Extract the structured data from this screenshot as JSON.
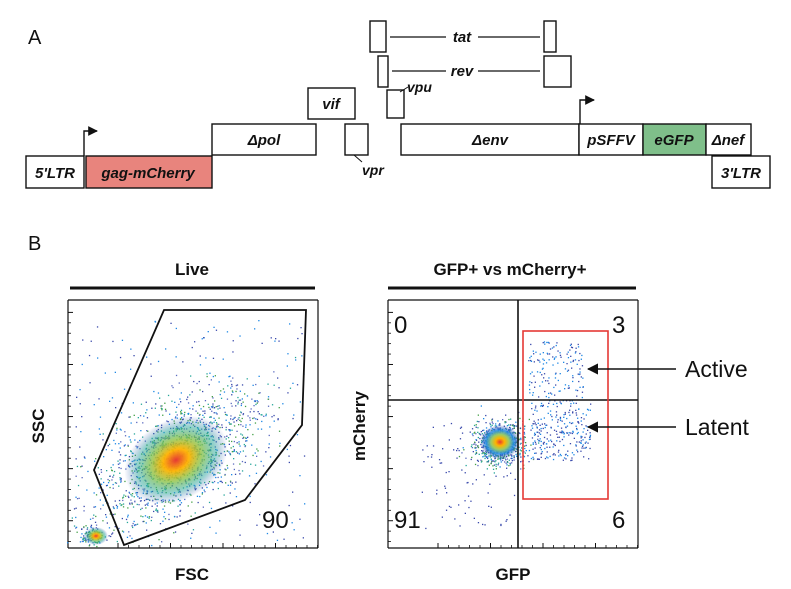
{
  "panel_a": {
    "letter": "A",
    "segments": {
      "ltr5": "5'LTR",
      "gag": "gag-mCherry",
      "pol": "Δpol",
      "vif": "vif",
      "vpr": "vpr",
      "vpu": "vpu",
      "tat": "tat",
      "rev": "rev",
      "env": "Δenv",
      "psffv": "pSFFV",
      "egfp": "eGFP",
      "nef": "Δnef",
      "ltr3": "3'LTR"
    },
    "colors": {
      "gag_fill": "#e8847d",
      "egfp_fill": "#7fbf8a"
    }
  },
  "panel_b": {
    "letter": "B",
    "left_plot": {
      "title": "Live",
      "xlabel": "FSC",
      "ylabel": "SSC",
      "gate_value": "90"
    },
    "right_plot": {
      "title": "GFP+ vs mCherry+",
      "xlabel": "GFP",
      "ylabel": "mCherry",
      "q_top_left": "0",
      "q_top_right": "3",
      "q_bottom_left": "91",
      "q_bottom_right": "6",
      "arrow_active": "Active",
      "arrow_latent": "Latent",
      "gate_color": "#e53935"
    }
  }
}
